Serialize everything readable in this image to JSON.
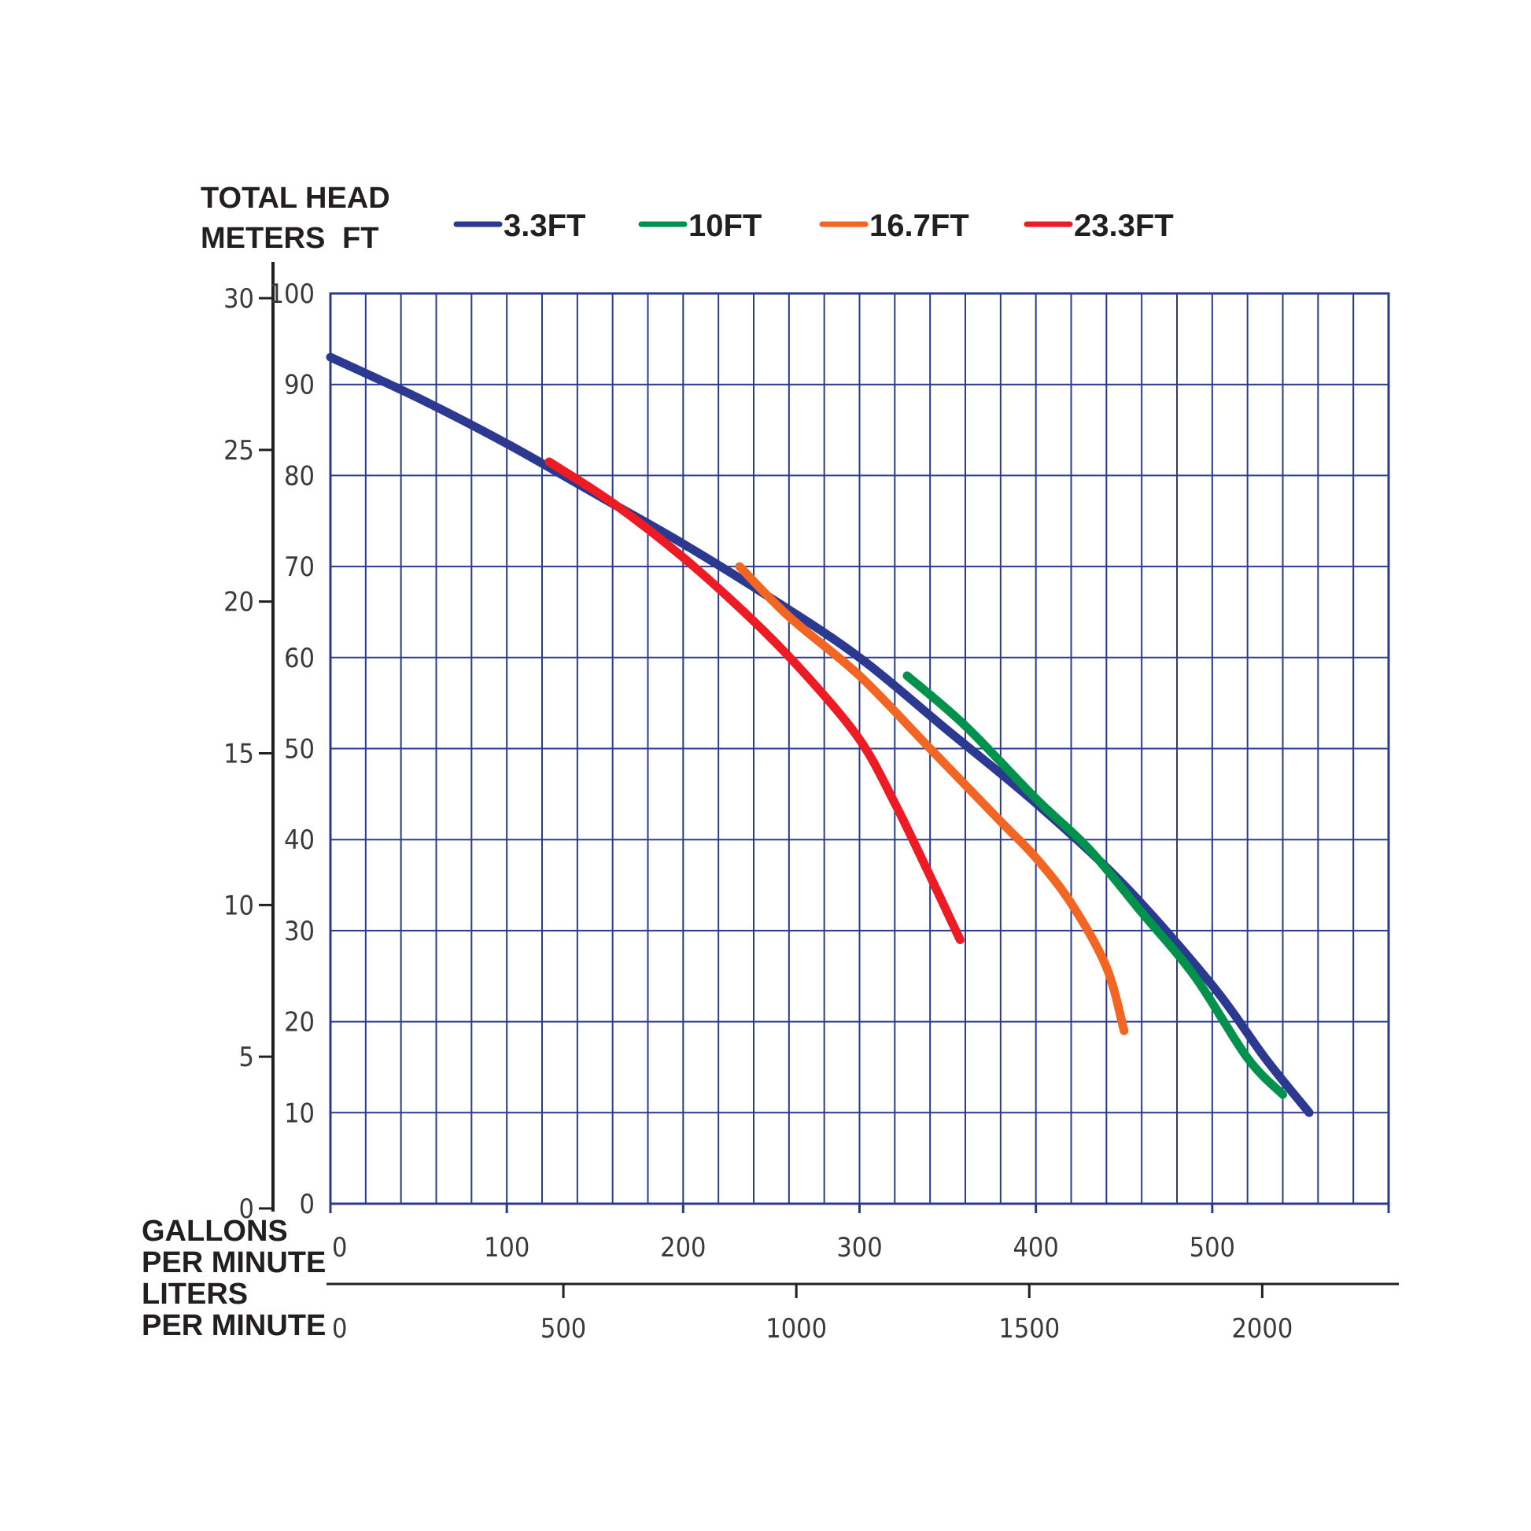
{
  "chart_data": {
    "type": "line",
    "title": "",
    "ylabel_line1": "TOTAL HEAD",
    "ylabel_meters": "METERS",
    "ylabel_feet": "FT",
    "xlabel_gpm": [
      "GALLONS",
      "PER MINUTE"
    ],
    "xlabel_lpm": [
      "LITERS",
      "PER MINUTE"
    ],
    "ft_axis": {
      "min": 0,
      "max": 100,
      "ticks": [
        "0",
        "10",
        "20",
        "30",
        "40",
        "50",
        "60",
        "70",
        "80",
        "90",
        "100"
      ]
    },
    "m_axis": {
      "min": 0,
      "max": 30,
      "ticks": [
        "0",
        "5",
        "10",
        "15",
        "20",
        "25",
        "30"
      ]
    },
    "gpm_axis": {
      "min": 0,
      "max": 600,
      "ticks": [
        "0",
        "100",
        "200",
        "300",
        "400",
        "500"
      ]
    },
    "lpm_axis": {
      "ticks": [
        "0",
        "500",
        "1000",
        "1500",
        "2000"
      ]
    },
    "grid": true,
    "legend_position": "top",
    "colors": {
      "grid": "#2b3990",
      "axis": "#231f20"
    },
    "series": [
      {
        "name": "3.3FT",
        "color": "#2b3990",
        "points": [
          [
            0,
            93
          ],
          [
            50,
            88.5
          ],
          [
            100,
            83.5
          ],
          [
            150,
            78
          ],
          [
            200,
            72.5
          ],
          [
            250,
            66.5
          ],
          [
            300,
            60
          ],
          [
            350,
            52
          ],
          [
            400,
            44
          ],
          [
            450,
            35
          ],
          [
            500,
            24
          ],
          [
            530,
            16
          ],
          [
            555,
            10
          ]
        ]
      },
      {
        "name": "10FT",
        "color": "#00914c",
        "points": [
          [
            327,
            58
          ],
          [
            360,
            52.5
          ],
          [
            400,
            44.5
          ],
          [
            430,
            39
          ],
          [
            460,
            32
          ],
          [
            490,
            25
          ],
          [
            520,
            16
          ],
          [
            540,
            12
          ]
        ]
      },
      {
        "name": "16.7FT",
        "color": "#f26522",
        "points": [
          [
            232,
            70
          ],
          [
            260,
            64.5
          ],
          [
            300,
            58
          ],
          [
            340,
            50
          ],
          [
            380,
            42
          ],
          [
            400,
            38
          ],
          [
            420,
            33
          ],
          [
            440,
            26
          ],
          [
            450,
            19
          ]
        ]
      },
      {
        "name": "23.3FT",
        "color": "#ed1c24",
        "points": [
          [
            124,
            81.5
          ],
          [
            160,
            77
          ],
          [
            200,
            71
          ],
          [
            240,
            64
          ],
          [
            270,
            58
          ],
          [
            300,
            51
          ],
          [
            320,
            44
          ],
          [
            340,
            36
          ],
          [
            357,
            29
          ]
        ]
      }
    ]
  }
}
